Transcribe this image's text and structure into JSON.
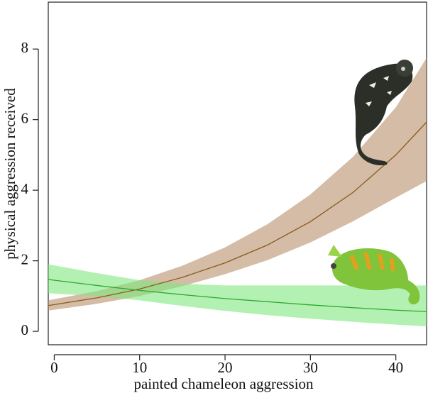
{
  "chart_data": {
    "type": "line",
    "xlabel": "painted chameleon aggression",
    "ylabel": "physical aggression received",
    "x": [
      -0.7,
      5,
      10,
      15,
      20,
      25,
      30,
      35,
      40,
      43.6
    ],
    "series": [
      {
        "color": "#8b5a1b",
        "band_color": "#b8906a",
        "values": [
          0.73,
          0.95,
          1.2,
          1.53,
          1.94,
          2.45,
          3.11,
          3.94,
          5.0,
          5.93
        ],
        "lower": [
          0.59,
          0.78,
          1.0,
          1.28,
          1.62,
          2.02,
          2.52,
          3.12,
          3.79,
          4.26
        ],
        "upper": [
          0.88,
          1.14,
          1.45,
          1.86,
          2.38,
          3.04,
          3.88,
          4.95,
          6.35,
          7.75
        ]
      },
      {
        "color": "#2ea82e",
        "band_color": "#7ee87e",
        "values": [
          1.47,
          1.3,
          1.16,
          1.04,
          0.93,
          0.84,
          0.75,
          0.67,
          0.6,
          0.56
        ],
        "lower": [
          1.08,
          1.0,
          0.88,
          0.72,
          0.58,
          0.46,
          0.36,
          0.27,
          0.19,
          0.14
        ],
        "upper": [
          1.9,
          1.65,
          1.45,
          1.35,
          1.3,
          1.3,
          1.3,
          1.3,
          1.3,
          1.3
        ]
      }
    ],
    "xlim": [
      -0.7,
      43.6
    ],
    "ylim": [
      -0.38,
      9.33
    ],
    "xticks": [
      0,
      10,
      20,
      30,
      40
    ],
    "yticks": [
      0,
      2,
      4,
      6,
      8
    ]
  }
}
